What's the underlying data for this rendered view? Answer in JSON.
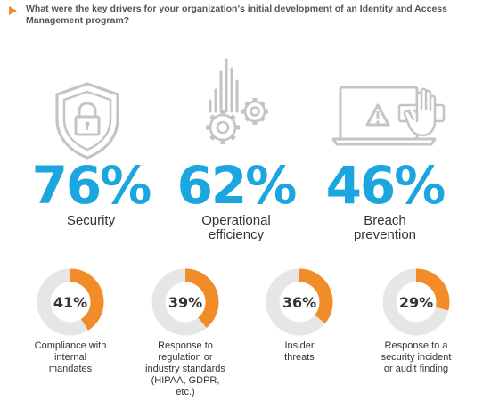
{
  "question": "What were the key drivers for your organization's initial development of an Identity and Access Management program?",
  "colors": {
    "accent": "#f28c28",
    "blue": "#1ba6df",
    "track": "#e6e6e6",
    "icon": "#b8b8b8"
  },
  "top_stats": [
    {
      "percent": "76%",
      "label": "Security"
    },
    {
      "percent": "62%",
      "label_line1": "Operational",
      "label_line2": "efficiency"
    },
    {
      "percent": "46%",
      "label_line1": "Breach",
      "label_line2": "prevention"
    }
  ],
  "icons": [
    "shield-lock",
    "gears-bars",
    "laptop-warning-hand"
  ],
  "chart_data": {
    "type": "pie",
    "categories": [
      "Security",
      "Operational efficiency",
      "Breach prevention",
      "Compliance with internal mandates",
      "Response to regulation or industry standards (HIPAA, GDPR, etc.)",
      "Insider threats",
      "Response to a security incident or audit finding"
    ],
    "values": [
      76,
      62,
      46,
      41,
      39,
      36,
      29
    ],
    "unit": "%",
    "title": ""
  },
  "donuts": [
    {
      "value": 41,
      "text": "41%",
      "lines": [
        "Compliance with",
        "internal",
        "mandates"
      ]
    },
    {
      "value": 39,
      "text": "39%",
      "lines": [
        "Response to",
        "regulation or",
        "industry standards",
        "(HIPAA, GDPR,",
        "etc.)"
      ]
    },
    {
      "value": 36,
      "text": "36%",
      "lines": [
        "Insider",
        "threats"
      ]
    },
    {
      "value": 29,
      "text": "29%",
      "lines": [
        "Response to a",
        "security incident",
        "or audit finding"
      ]
    }
  ]
}
